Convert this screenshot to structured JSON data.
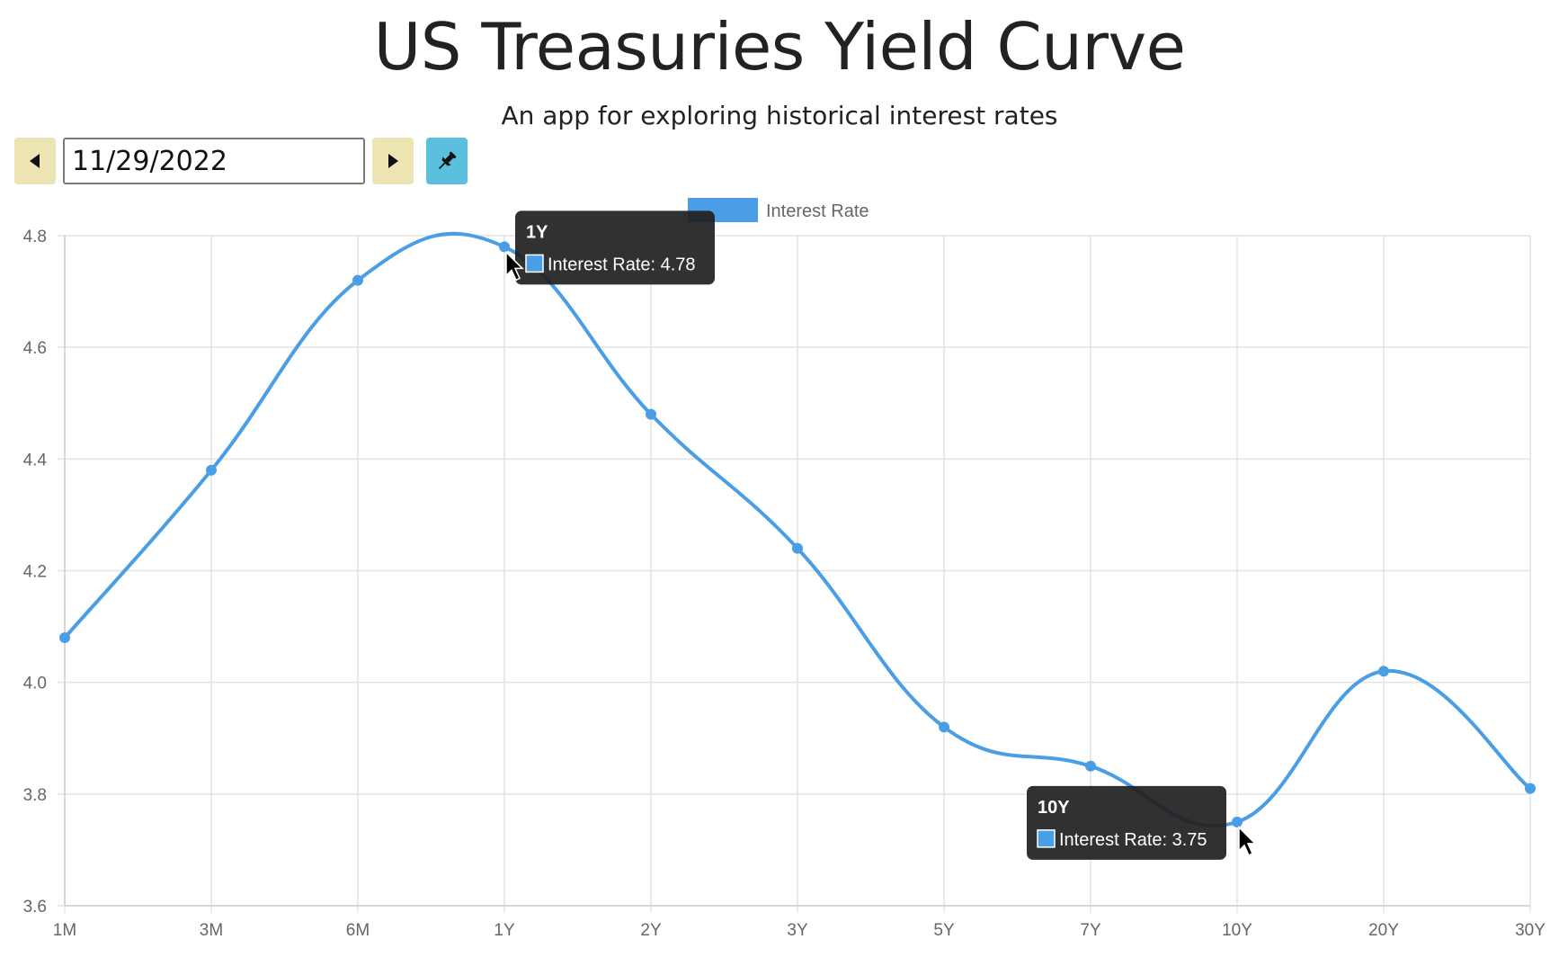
{
  "header": {
    "title": "US Treasuries Yield Curve",
    "subtitle": "An app for exploring historical interest rates"
  },
  "toolbar": {
    "prev_icon": "triangle-left-icon",
    "date_value": "11/29/2022",
    "next_icon": "triangle-right-icon",
    "pin_icon": "pushpin-icon"
  },
  "colors": {
    "line": "#4a9ee5",
    "nav_button": "#ece5b3",
    "pin_button": "#5bc0de",
    "tooltip_bg": "#1f1f1f"
  },
  "chart_data": {
    "type": "line",
    "categories": [
      "1M",
      "3M",
      "6M",
      "1Y",
      "2Y",
      "3Y",
      "5Y",
      "7Y",
      "10Y",
      "20Y",
      "30Y"
    ],
    "series": [
      {
        "name": "Interest Rate",
        "values": [
          4.08,
          4.38,
          4.72,
          4.78,
          4.48,
          4.24,
          3.92,
          3.85,
          3.75,
          4.02,
          3.81
        ]
      }
    ],
    "ylim": [
      3.6,
      4.8
    ],
    "yticks": [
      "4.8",
      "4.6",
      "4.4",
      "4.2",
      "4.0",
      "3.8",
      "3.6"
    ],
    "grid": true,
    "legend_position": "top-center",
    "tooltips": [
      {
        "category": "1Y",
        "title": "1Y",
        "label": "Interest Rate: 4.78"
      },
      {
        "category": "10Y",
        "title": "10Y",
        "label": "Interest Rate: 3.75"
      }
    ]
  }
}
